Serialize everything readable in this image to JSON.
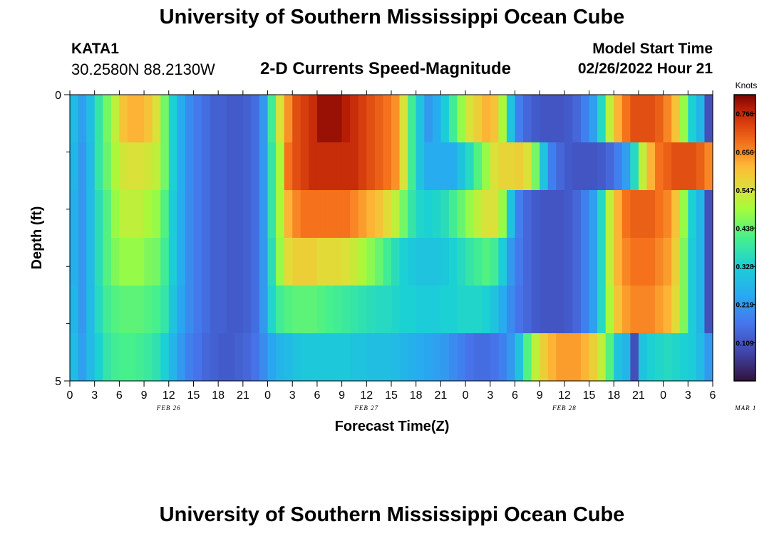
{
  "header": {
    "title": "University of Southern Mississippi Ocean Cube",
    "station_id": "KATA1",
    "coords": "30.2580N  88.2130W",
    "plot_title": "2-D Currents Speed-Magnitude",
    "model_start_label": "Model Start Time",
    "model_start_value": "02/26/2022 Hour 21"
  },
  "footer": {
    "title": "University of Southern Mississippi Ocean Cube"
  },
  "chart_data": {
    "type": "heatmap",
    "title": "2-D Currents Speed-Magnitude",
    "xlabel": "Forecast Time(Z)",
    "ylabel": "Depth (ft)",
    "y_ticks": [
      "0",
      "5"
    ],
    "y_range": [
      0,
      5
    ],
    "x_start_hour": 0,
    "x_step_hours": 1,
    "x_hours": 78,
    "x_tick_labels": [
      "0",
      "3",
      "6",
      "9",
      "12",
      "15",
      "18",
      "21",
      "0",
      "3",
      "6",
      "9",
      "12",
      "15",
      "18",
      "21",
      "0",
      "3",
      "6",
      "9",
      "12",
      "15",
      "18",
      "21",
      "0",
      "3",
      "6"
    ],
    "date_labels": [
      {
        "label": "FEB 26",
        "hour": 12
      },
      {
        "label": "FEB 27",
        "hour": 36
      },
      {
        "label": "FEB 28",
        "hour": 60
      },
      {
        "label": "MAR 1",
        "hour": 82
      }
    ],
    "colorbar": {
      "unit": "Knots",
      "min": 0.0,
      "max": 0.82,
      "ticks": [
        "0.766",
        "0.656",
        "0.547",
        "0.438",
        "0.328",
        "0.219",
        "0.109"
      ],
      "tick_values": [
        0.766,
        0.656,
        0.547,
        0.438,
        0.328,
        0.219,
        0.109
      ]
    },
    "layers_note": "rows are depth layers top (surface) to bottom; values in knots per forecast hour",
    "depth_layers": [
      [
        0.28,
        0.23,
        0.29,
        0.38,
        0.45,
        0.52,
        0.6,
        0.62,
        0.62,
        0.6,
        0.55,
        0.45,
        0.33,
        0.25,
        0.2,
        0.17,
        0.15,
        0.13,
        0.13,
        0.12,
        0.12,
        0.13,
        0.15,
        0.22,
        0.4,
        0.55,
        0.65,
        0.72,
        0.74,
        0.76,
        0.8,
        0.8,
        0.8,
        0.78,
        0.76,
        0.74,
        0.72,
        0.7,
        0.68,
        0.65,
        0.55,
        0.4,
        0.3,
        0.22,
        0.25,
        0.32,
        0.4,
        0.48,
        0.55,
        0.58,
        0.62,
        0.6,
        0.5,
        0.3,
        0.18,
        0.14,
        0.12,
        0.11,
        0.11,
        0.11,
        0.12,
        0.14,
        0.18,
        0.23,
        0.35,
        0.52,
        0.62,
        0.68,
        0.72,
        0.72,
        0.72,
        0.7,
        0.66,
        0.6,
        0.48,
        0.33,
        0.27,
        0.1
      ],
      [
        0.27,
        0.22,
        0.28,
        0.38,
        0.44,
        0.5,
        0.54,
        0.55,
        0.55,
        0.54,
        0.52,
        0.45,
        0.33,
        0.25,
        0.2,
        0.17,
        0.15,
        0.13,
        0.13,
        0.12,
        0.12,
        0.13,
        0.15,
        0.22,
        0.38,
        0.5,
        0.68,
        0.72,
        0.74,
        0.76,
        0.76,
        0.76,
        0.76,
        0.76,
        0.76,
        0.74,
        0.72,
        0.7,
        0.68,
        0.65,
        0.55,
        0.4,
        0.3,
        0.25,
        0.25,
        0.25,
        0.25,
        0.3,
        0.35,
        0.42,
        0.48,
        0.55,
        0.57,
        0.57,
        0.58,
        0.55,
        0.45,
        0.3,
        0.18,
        0.14,
        0.12,
        0.11,
        0.11,
        0.11,
        0.12,
        0.14,
        0.18,
        0.23,
        0.35,
        0.52,
        0.62,
        0.68,
        0.7,
        0.72,
        0.72,
        0.72,
        0.7,
        0.66
      ],
      [
        0.26,
        0.22,
        0.28,
        0.36,
        0.42,
        0.48,
        0.52,
        0.52,
        0.52,
        0.5,
        0.48,
        0.42,
        0.32,
        0.25,
        0.2,
        0.17,
        0.15,
        0.13,
        0.13,
        0.12,
        0.12,
        0.13,
        0.15,
        0.22,
        0.38,
        0.5,
        0.62,
        0.66,
        0.68,
        0.68,
        0.68,
        0.68,
        0.68,
        0.68,
        0.66,
        0.64,
        0.62,
        0.6,
        0.56,
        0.52,
        0.45,
        0.38,
        0.34,
        0.33,
        0.34,
        0.36,
        0.4,
        0.44,
        0.48,
        0.52,
        0.55,
        0.55,
        0.48,
        0.3,
        0.18,
        0.14,
        0.12,
        0.11,
        0.11,
        0.11,
        0.12,
        0.14,
        0.18,
        0.23,
        0.35,
        0.52,
        0.62,
        0.68,
        0.7,
        0.7,
        0.7,
        0.68,
        0.66,
        0.6,
        0.48,
        0.33,
        0.27,
        0.1
      ],
      [
        0.26,
        0.22,
        0.28,
        0.36,
        0.42,
        0.46,
        0.48,
        0.48,
        0.48,
        0.46,
        0.45,
        0.4,
        0.32,
        0.25,
        0.2,
        0.17,
        0.15,
        0.13,
        0.13,
        0.12,
        0.12,
        0.13,
        0.15,
        0.22,
        0.36,
        0.48,
        0.56,
        0.58,
        0.58,
        0.58,
        0.56,
        0.56,
        0.56,
        0.55,
        0.53,
        0.5,
        0.47,
        0.44,
        0.4,
        0.36,
        0.33,
        0.31,
        0.3,
        0.3,
        0.3,
        0.31,
        0.33,
        0.35,
        0.38,
        0.4,
        0.42,
        0.4,
        0.32,
        0.22,
        0.17,
        0.14,
        0.12,
        0.11,
        0.11,
        0.11,
        0.12,
        0.14,
        0.18,
        0.23,
        0.35,
        0.52,
        0.62,
        0.66,
        0.68,
        0.68,
        0.68,
        0.66,
        0.64,
        0.58,
        0.46,
        0.32,
        0.27,
        0.1
      ],
      [
        0.27,
        0.22,
        0.28,
        0.35,
        0.4,
        0.42,
        0.43,
        0.43,
        0.43,
        0.42,
        0.41,
        0.38,
        0.3,
        0.24,
        0.2,
        0.17,
        0.15,
        0.13,
        0.13,
        0.12,
        0.12,
        0.13,
        0.15,
        0.22,
        0.34,
        0.4,
        0.42,
        0.43,
        0.43,
        0.43,
        0.42,
        0.41,
        0.4,
        0.39,
        0.38,
        0.37,
        0.36,
        0.35,
        0.35,
        0.34,
        0.33,
        0.33,
        0.32,
        0.32,
        0.32,
        0.33,
        0.33,
        0.34,
        0.34,
        0.34,
        0.33,
        0.3,
        0.25,
        0.2,
        0.16,
        0.14,
        0.12,
        0.11,
        0.11,
        0.11,
        0.12,
        0.14,
        0.18,
        0.23,
        0.35,
        0.5,
        0.6,
        0.64,
        0.66,
        0.66,
        0.66,
        0.64,
        0.62,
        0.56,
        0.46,
        0.32,
        0.27,
        0.1
      ],
      [
        0.28,
        0.23,
        0.28,
        0.33,
        0.38,
        0.4,
        0.41,
        0.41,
        0.4,
        0.39,
        0.37,
        0.33,
        0.27,
        0.22,
        0.18,
        0.16,
        0.14,
        0.13,
        0.12,
        0.12,
        0.13,
        0.14,
        0.16,
        0.2,
        0.24,
        0.27,
        0.28,
        0.3,
        0.31,
        0.31,
        0.31,
        0.31,
        0.31,
        0.31,
        0.3,
        0.3,
        0.29,
        0.29,
        0.29,
        0.28,
        0.27,
        0.26,
        0.25,
        0.24,
        0.23,
        0.22,
        0.2,
        0.18,
        0.16,
        0.15,
        0.15,
        0.16,
        0.18,
        0.22,
        0.3,
        0.42,
        0.52,
        0.58,
        0.62,
        0.64,
        0.64,
        0.64,
        0.62,
        0.58,
        0.52,
        0.42,
        0.3,
        0.27,
        0.1,
        0.3,
        0.33,
        0.34,
        0.35,
        0.34,
        0.33,
        0.32,
        0.28,
        0.22
      ]
    ]
  }
}
